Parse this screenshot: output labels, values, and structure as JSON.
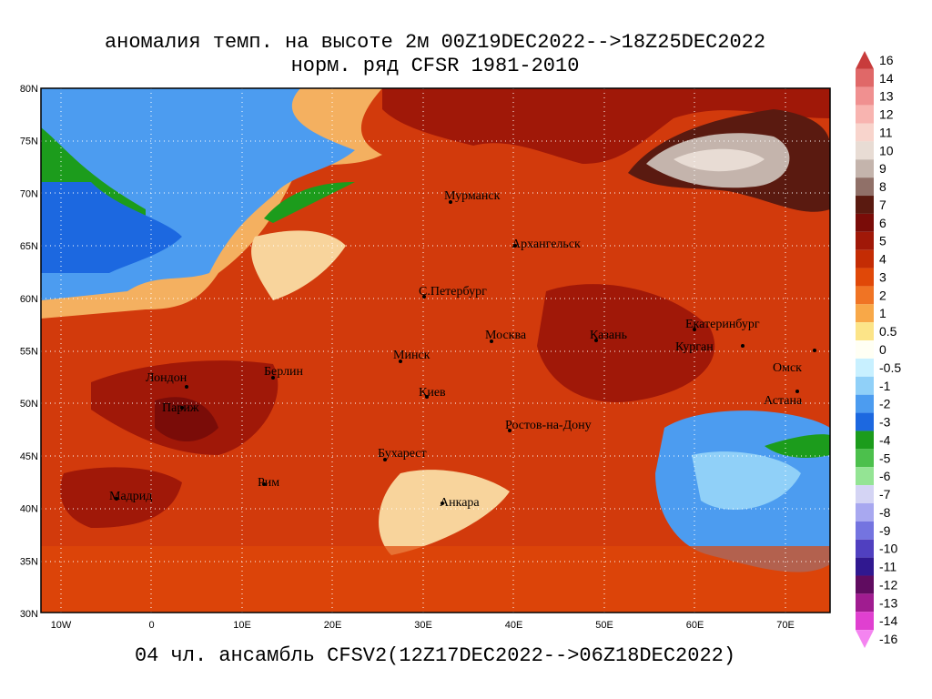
{
  "header": {
    "title": "аномалия темп. на высоте 2м 00Z19DEC2022-->18Z25DEC2022",
    "subtitle": "норм. ряд CFSR 1981-2010"
  },
  "footer": "04 чл. ансамбль CFSV2(12Z17DEC2022-->06Z18DEC2022)",
  "map": {
    "lat_labels": [
      "80N",
      "75N",
      "70N",
      "65N",
      "60N",
      "55N",
      "50N",
      "45N",
      "40N",
      "35N",
      "30N"
    ],
    "lon_labels": [
      "10W",
      "0",
      "10E",
      "20E",
      "30E",
      "40E",
      "50E",
      "60E",
      "70E"
    ],
    "cities": [
      "Мурманск",
      "Архангельск",
      "С.Петербург",
      "Москва",
      "Казань",
      "Екатеринбург",
      "Курган",
      "Омск",
      "Астана",
      "Минск",
      "Киев",
      "Лондон",
      "Париж",
      "Берлин",
      "Ростов-на-Дону",
      "Бухарест",
      "Рим",
      "Мадрид",
      "Анкара"
    ]
  },
  "colorbar": {
    "labels": [
      "16",
      "14",
      "13",
      "12",
      "11",
      "10",
      "9",
      "8",
      "7",
      "6",
      "5",
      "4",
      "3",
      "2",
      "1",
      "0.5",
      "0",
      "-0.5",
      "-1",
      "-2",
      "-3",
      "-4",
      "-5",
      "-6",
      "-7",
      "-8",
      "-9",
      "-10",
      "-11",
      "-12",
      "-13",
      "-14",
      "-16"
    ],
    "colors": [
      "#c83c3c",
      "#e06868",
      "#f09090",
      "#f8b4b0",
      "#f8d4cc",
      "#e8dcd4",
      "#c4b4ac",
      "#907068",
      "#5a1a10",
      "#7a0c08",
      "#a01808",
      "#c42c04",
      "#e04808",
      "#f07424",
      "#f8a848",
      "#fce488",
      "#fffff4",
      "#c8f0ff",
      "#90d0f8",
      "#4c9cf0",
      "#1c68e0",
      "#1c9c1c",
      "#4cc04c",
      "#94e494",
      "#d4d4f4",
      "#a8a8f0",
      "#7474e0",
      "#5040c0",
      "#301890",
      "#600c60",
      "#a01c90",
      "#e040d0",
      "#f484f0"
    ]
  }
}
